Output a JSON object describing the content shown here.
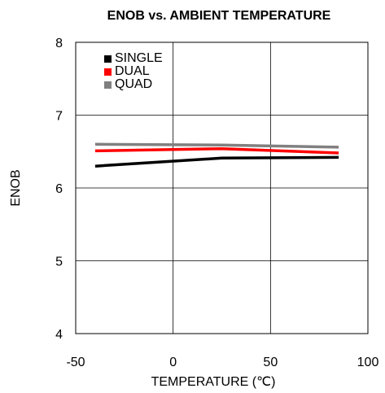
{
  "chart_data": {
    "type": "line",
    "title": "ENOB vs. AMBIENT TEMPERATURE",
    "xlabel": "TEMPERATURE (℃)",
    "ylabel": "ENOB",
    "xlim": [
      -50,
      100
    ],
    "ylim": [
      4,
      8
    ],
    "x_ticks": [
      "-50",
      "0",
      "50",
      "100"
    ],
    "y_ticks": [
      "4",
      "5",
      "6",
      "7",
      "8"
    ],
    "grid": true,
    "legend_position": "top-left",
    "series": [
      {
        "name": "SINGLE",
        "color": "#000000",
        "x": [
          -40,
          25,
          85
        ],
        "y": [
          6.3,
          6.41,
          6.42
        ]
      },
      {
        "name": "DUAL",
        "color": "#ff0000",
        "x": [
          -40,
          25,
          85
        ],
        "y": [
          6.51,
          6.54,
          6.48
        ]
      },
      {
        "name": "QUAD",
        "color": "#808080",
        "x": [
          -40,
          25,
          85
        ],
        "y": [
          6.6,
          6.59,
          6.56
        ]
      }
    ]
  }
}
